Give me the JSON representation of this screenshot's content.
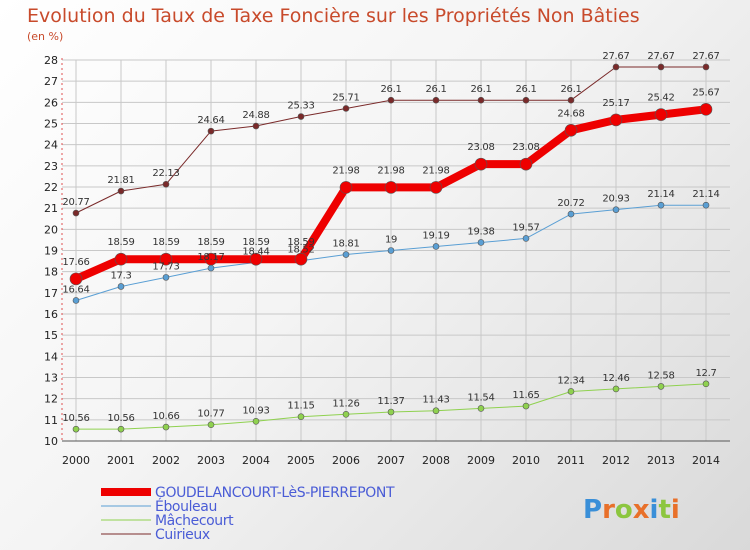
{
  "chart_data": {
    "type": "line",
    "title": "Evolution du Taux de Taxe Foncière sur les Propriétés Non Bâties",
    "subtitle": "(en %)",
    "xlabel": "",
    "ylabel": "(en %)",
    "ylim": [
      10,
      28
    ],
    "yticks": [
      10,
      11,
      12,
      13,
      14,
      15,
      16,
      17,
      18,
      19,
      20,
      21,
      22,
      23,
      24,
      25,
      26,
      27,
      28
    ],
    "categories": [
      "2000",
      "2001",
      "2002",
      "2003",
      "2004",
      "2005",
      "2006",
      "2007",
      "2008",
      "2009",
      "2010",
      "2011",
      "2012",
      "2013",
      "2014"
    ],
    "grid": true,
    "legend_position": "bottom-left",
    "series": [
      {
        "name": "Cuirieux",
        "color": "#7a2a2a",
        "labels": [
          "20.77",
          "21.81",
          "22.13",
          "24.64",
          "24.88",
          "25.33",
          "25.71",
          "26.1",
          "26.1",
          "26.1",
          "26.1",
          "26.1",
          "27.67",
          "27.67",
          "27.67"
        ],
        "values": [
          20.77,
          21.81,
          22.13,
          24.64,
          24.88,
          25.33,
          25.71,
          26.1,
          26.1,
          26.1,
          26.1,
          26.1,
          27.67,
          27.67,
          27.67
        ]
      },
      {
        "name": "Ébouleau",
        "color": "#5a9fd4",
        "labels": [
          "16.64",
          "17.3",
          "17.73",
          "18.17",
          "18.44",
          "18.52",
          "18.81",
          "19",
          "19.19",
          "19.38",
          "19.57",
          "20.72",
          "20.93",
          "21.14",
          "21.14"
        ],
        "values": [
          16.64,
          17.3,
          17.73,
          18.17,
          18.44,
          18.52,
          18.81,
          19.0,
          19.19,
          19.38,
          19.57,
          20.72,
          20.93,
          21.14,
          21.14
        ]
      },
      {
        "name": "Mâchecourt",
        "color": "#8fd14f",
        "labels": [
          "10.56",
          "10.56",
          "10.66",
          "10.77",
          "10.93",
          "11.15",
          "11.26",
          "11.37",
          "11.43",
          "11.54",
          "11.65",
          "12.34",
          "12.46",
          "12.58",
          "12.7"
        ],
        "values": [
          10.56,
          10.56,
          10.66,
          10.77,
          10.93,
          11.15,
          11.26,
          11.37,
          11.43,
          11.54,
          11.65,
          12.34,
          12.46,
          12.58,
          12.7
        ]
      },
      {
        "name": "GOUDELANCOURT-LèS-PIERREPONT",
        "color": "#ee0000",
        "labels": [
          "17.66",
          "18.59",
          "18.59",
          "18.59",
          "18.59",
          "18.59",
          "21.98",
          "21.98",
          "21.98",
          "23.08",
          "23.08",
          "24.68",
          "25.17",
          "25.42",
          "25.67"
        ],
        "values": [
          17.66,
          18.59,
          18.59,
          18.59,
          18.59,
          18.59,
          21.98,
          21.98,
          21.98,
          23.08,
          23.08,
          24.68,
          25.17,
          25.42,
          25.67
        ]
      }
    ],
    "legend_order": [
      "GOUDELANCOURT-LèS-PIERREPONT",
      "Ébouleau",
      "Mâchecourt",
      "Cuirieux"
    ]
  },
  "brand": {
    "text": "Proxiti",
    "letters": [
      "P",
      "r",
      "o",
      "x",
      "i",
      "t",
      "i"
    ],
    "colors": [
      "#3a8fd8",
      "#e8702a",
      "#8cc63f",
      "#e8702a",
      "#3a8fd8",
      "#8cc63f",
      "#e8702a"
    ]
  }
}
